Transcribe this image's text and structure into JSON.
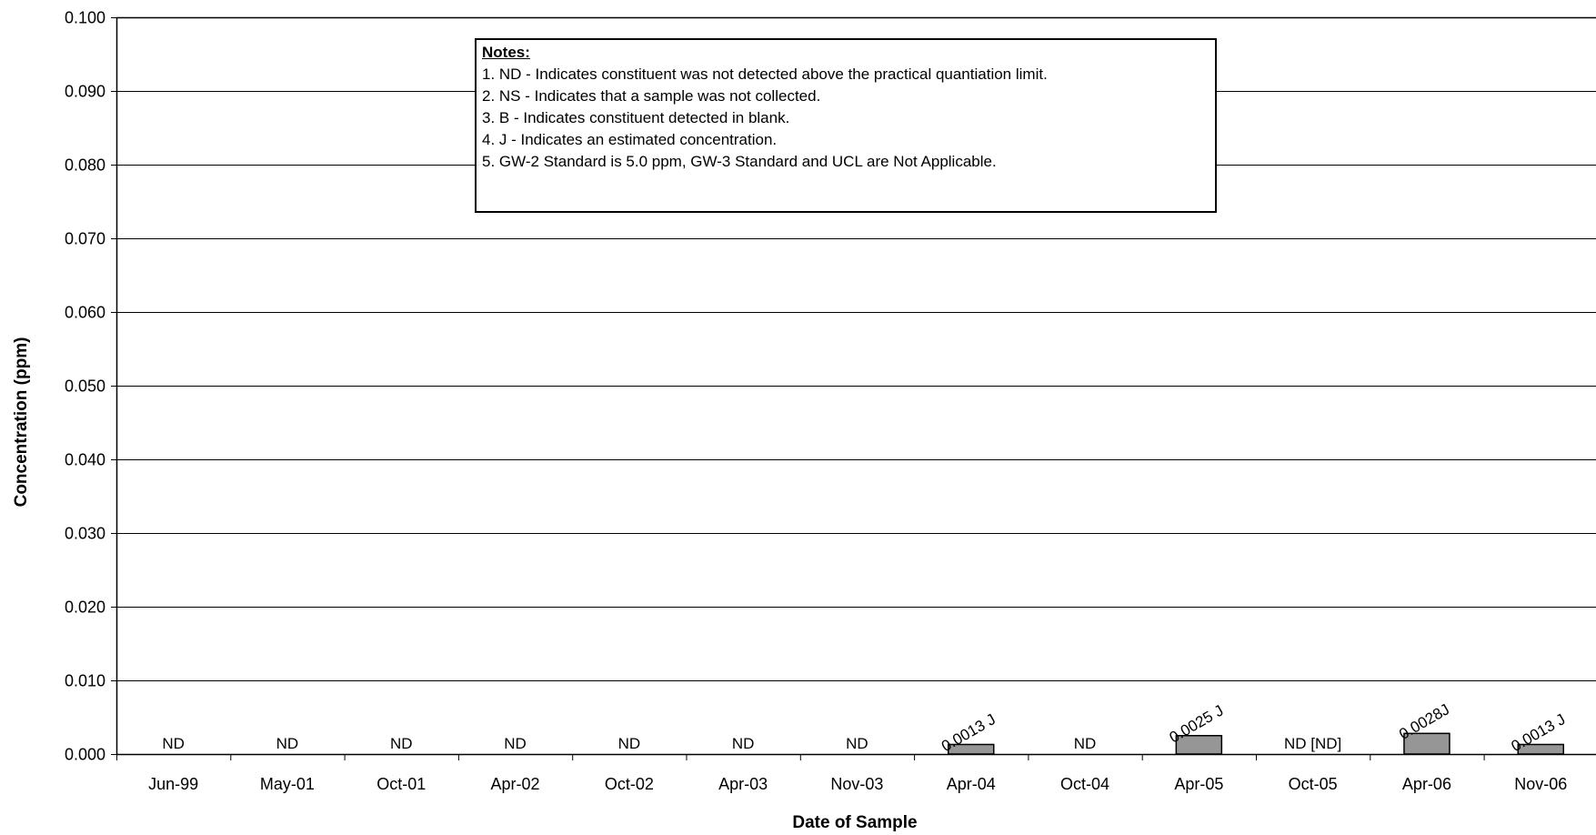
{
  "chart_data": {
    "type": "bar",
    "title": "",
    "xlabel": "Date of Sample",
    "ylabel": "Concentration (ppm)",
    "ylim": [
      0,
      0.1
    ],
    "yticks": [
      "0.000",
      "0.010",
      "0.020",
      "0.030",
      "0.040",
      "0.050",
      "0.060",
      "0.070",
      "0.080",
      "0.090",
      "0.100"
    ],
    "grid": true,
    "categories": [
      "Jun-99",
      "May-01",
      "Oct-01",
      "Apr-02",
      "Oct-02",
      "Apr-03",
      "Nov-03",
      "Apr-04",
      "Oct-04",
      "Apr-05",
      "Oct-05",
      "Apr-06",
      "Nov-06"
    ],
    "values": [
      0,
      0,
      0,
      0,
      0,
      0,
      0,
      0.0013,
      0,
      0.0025,
      0,
      0.0028,
      0.0013
    ],
    "data_labels": [
      "ND",
      "ND",
      "ND",
      "ND",
      "ND",
      "ND",
      "ND",
      "0.0013 J",
      "ND",
      "0.0025 J",
      "ND [ND]",
      "0.0028J",
      "0.0013 J"
    ],
    "bar_color": "#969696"
  },
  "notes": {
    "title": "Notes:",
    "lines": [
      "1. ND - Indicates constituent was not detected above the practical quantiation limit.",
      "2. NS - Indicates that a sample was not collected.",
      "3. B - Indicates constituent detected in blank.",
      "4. J - Indicates an estimated concentration.",
      "5. GW-2 Standard is 5.0 ppm, GW-3 Standard and UCL are Not Applicable."
    ]
  }
}
